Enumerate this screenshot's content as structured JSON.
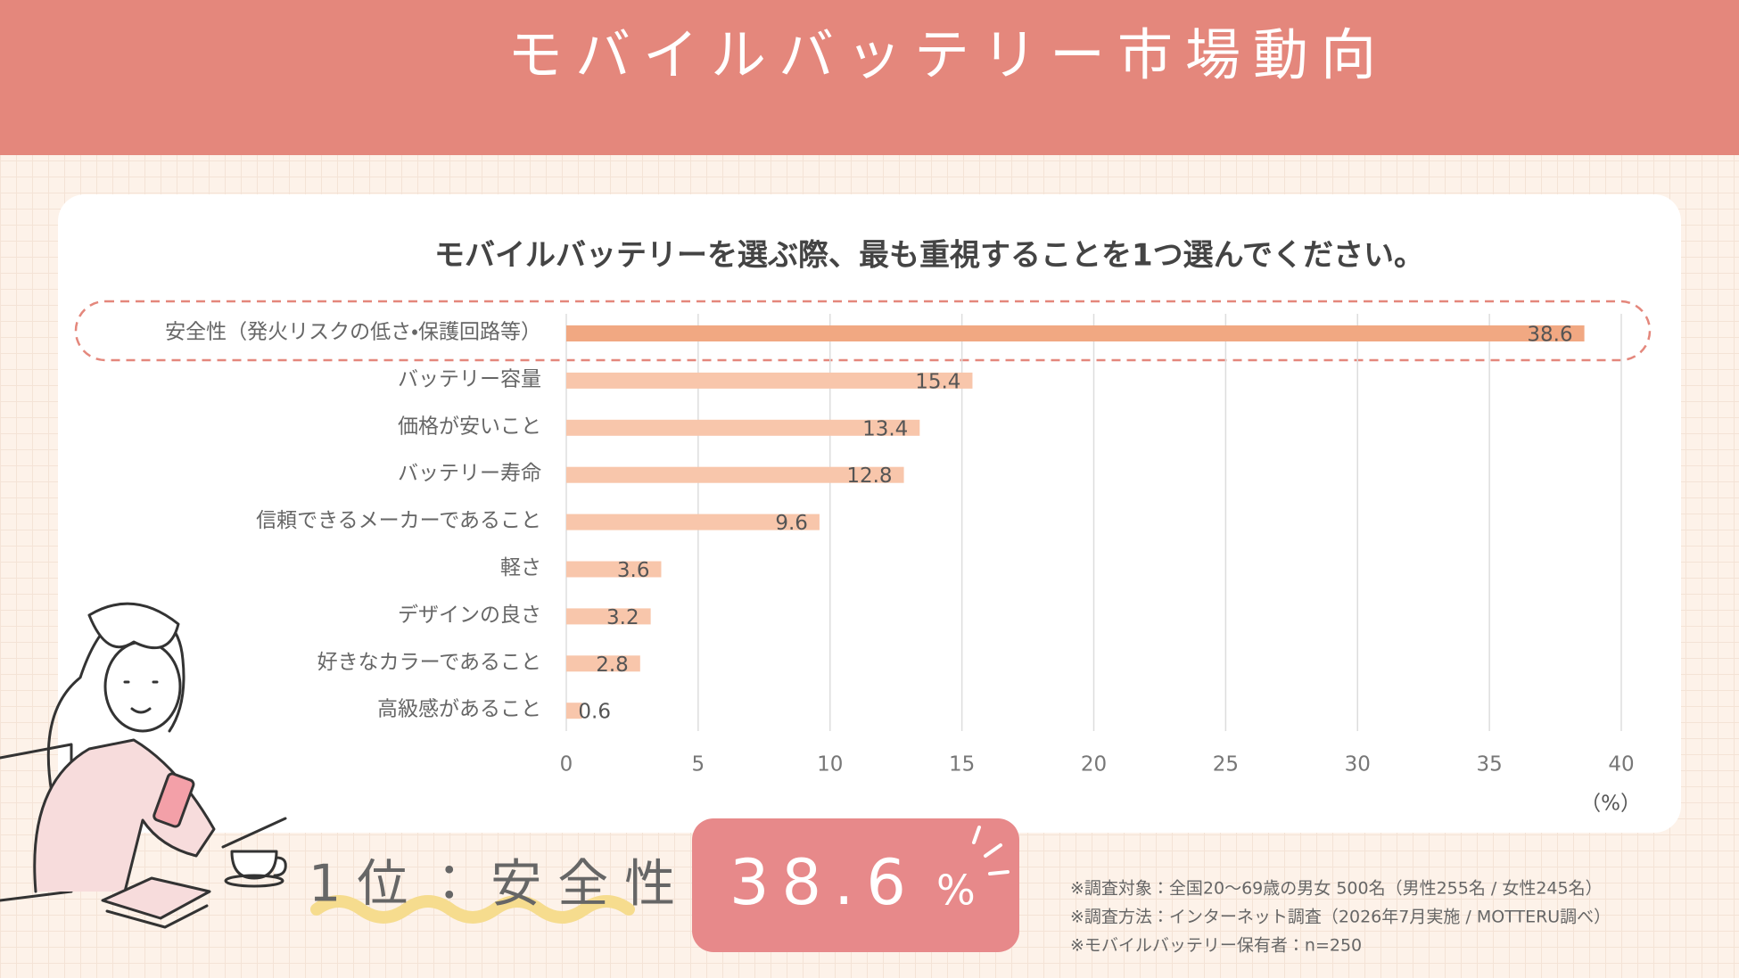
{
  "header": {
    "title": "モバイルバッテリー市場動向"
  },
  "chart_data": {
    "type": "bar",
    "orientation": "horizontal",
    "title": "モバイルバッテリーを選ぶ際、最も重視することを1つ選んでください。",
    "categories": [
      "安全性（発火リスクの低さ・保護回路等）",
      "バッテリー容量",
      "価格が安いこと",
      "バッテリー寿命",
      "信頼できるメーカーであること",
      "軽さ",
      "デザインの良さ",
      "好きなカラーであること",
      "高級感があること"
    ],
    "values": [
      38.6,
      15.4,
      13.4,
      12.8,
      9.6,
      3.6,
      3.2,
      2.8,
      0.6
    ],
    "colors": [
      "#f1a882",
      "#f8c6ab",
      "#f8c6ab",
      "#f8c6ab",
      "#f8c6ab",
      "#f8c6ab",
      "#f8c6ab",
      "#f8c6ab",
      "#f8c6ab"
    ],
    "xlim": [
      0,
      40
    ],
    "xticks": [
      0,
      5,
      10,
      15,
      20,
      25,
      30,
      35,
      40
    ],
    "xlabel": "（%）",
    "grid": true
  },
  "highlight": {
    "label": "1位：安全性",
    "value": "38.6",
    "unit": "%"
  },
  "notes": [
    "※調査対象：全国20〜69歳の男女 500名（男性255名 / 女性245名）",
    "※調査方法：インターネット調査（2026年7月実施 / MOTTERU調べ）",
    "※モバイルバッテリー保有者：n=250"
  ]
}
